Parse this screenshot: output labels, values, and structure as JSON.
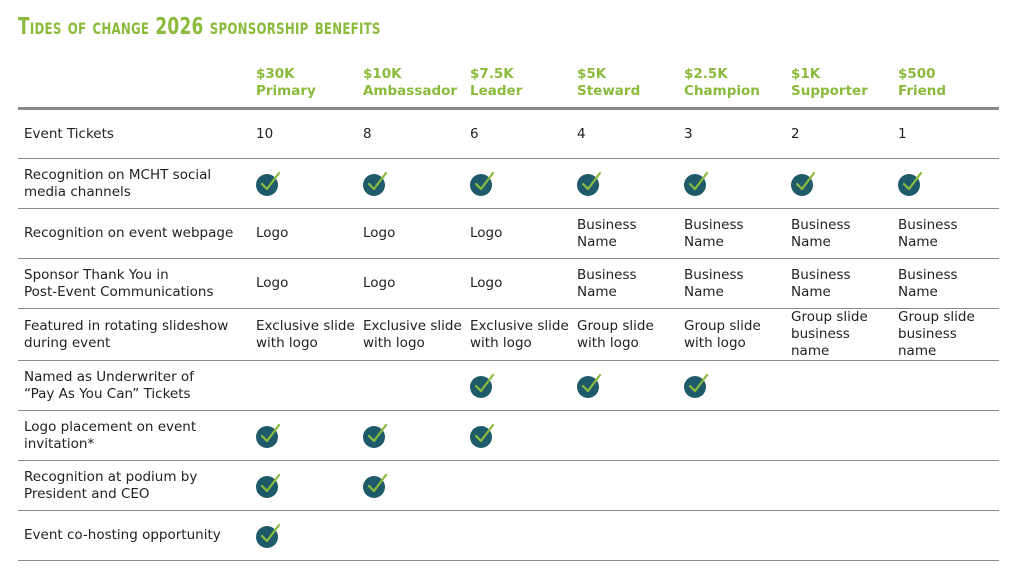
{
  "title": "Tides of Change 2026 sponsorship benefits",
  "tiers": [
    {
      "amount": "$30K",
      "name": "Primary"
    },
    {
      "amount": "$10K",
      "name": "Ambassador"
    },
    {
      "amount": "$7.5K",
      "name": "Leader"
    },
    {
      "amount": "$5K",
      "name": "Steward"
    },
    {
      "amount": "$2.5K",
      "name": "Champion"
    },
    {
      "amount": "$1K",
      "name": "Supporter"
    },
    {
      "amount": "$500",
      "name": "Friend"
    }
  ],
  "rows": [
    {
      "label": "Event Tickets",
      "cells": [
        {
          "type": "text",
          "lines": [
            "10"
          ]
        },
        {
          "type": "text",
          "lines": [
            "8"
          ]
        },
        {
          "type": "text",
          "lines": [
            "6"
          ]
        },
        {
          "type": "text",
          "lines": [
            "4"
          ]
        },
        {
          "type": "text",
          "lines": [
            "3"
          ]
        },
        {
          "type": "text",
          "lines": [
            "2"
          ]
        },
        {
          "type": "text",
          "lines": [
            "1"
          ]
        }
      ]
    },
    {
      "label": "Recognition on MCHT social media channels",
      "label_lines": [
        "Recognition on MCHT social",
        "media channels"
      ],
      "cells": [
        {
          "type": "check"
        },
        {
          "type": "check"
        },
        {
          "type": "check"
        },
        {
          "type": "check"
        },
        {
          "type": "check"
        },
        {
          "type": "check"
        },
        {
          "type": "check"
        }
      ]
    },
    {
      "label": "Recognition on event webpage",
      "cells": [
        {
          "type": "text",
          "lines": [
            "Logo"
          ]
        },
        {
          "type": "text",
          "lines": [
            "Logo"
          ]
        },
        {
          "type": "text",
          "lines": [
            "Logo"
          ]
        },
        {
          "type": "text",
          "lines": [
            "Business",
            "Name"
          ]
        },
        {
          "type": "text",
          "lines": [
            "Business",
            "Name"
          ]
        },
        {
          "type": "text",
          "lines": [
            "Business",
            "Name"
          ]
        },
        {
          "type": "text",
          "lines": [
            "Business",
            "Name"
          ]
        }
      ]
    },
    {
      "label": "Sponsor Thank You in Post-Event Communications",
      "label_lines": [
        "Sponsor Thank You in",
        "Post-Event Communications"
      ],
      "cells": [
        {
          "type": "text",
          "lines": [
            "Logo"
          ]
        },
        {
          "type": "text",
          "lines": [
            "Logo"
          ]
        },
        {
          "type": "text",
          "lines": [
            "Logo"
          ]
        },
        {
          "type": "text",
          "lines": [
            "Business",
            "Name"
          ]
        },
        {
          "type": "text",
          "lines": [
            "Business",
            "Name"
          ]
        },
        {
          "type": "text",
          "lines": [
            "Business",
            "Name"
          ]
        },
        {
          "type": "text",
          "lines": [
            "Business",
            "Name"
          ]
        }
      ]
    },
    {
      "label": "Featured in rotating slideshow during event",
      "label_lines": [
        "Featured in rotating slideshow",
        "during event"
      ],
      "cells": [
        {
          "type": "text",
          "lines": [
            "Exclusive slide",
            "with logo"
          ]
        },
        {
          "type": "text",
          "lines": [
            "Exclusive slide",
            "with logo"
          ]
        },
        {
          "type": "text",
          "lines": [
            "Exclusive slide",
            "with logo"
          ]
        },
        {
          "type": "text",
          "lines": [
            "Group slide",
            "with logo"
          ]
        },
        {
          "type": "text",
          "lines": [
            "Group slide",
            "with logo"
          ]
        },
        {
          "type": "text",
          "lines": [
            "Group slide",
            "business name"
          ]
        },
        {
          "type": "text",
          "lines": [
            "Group slide",
            "business name"
          ]
        }
      ]
    },
    {
      "label": "Named as Underwriter of “Pay As You Can” Tickets",
      "label_lines": [
        "Named as Underwriter of",
        "“Pay As You Can” Tickets"
      ],
      "cells": [
        {
          "type": "empty"
        },
        {
          "type": "empty"
        },
        {
          "type": "check"
        },
        {
          "type": "check"
        },
        {
          "type": "check"
        },
        {
          "type": "empty"
        },
        {
          "type": "empty"
        }
      ]
    },
    {
      "label": "Logo placement on event invitation*",
      "label_lines": [
        "Logo placement on event",
        "invitation*"
      ],
      "cells": [
        {
          "type": "check"
        },
        {
          "type": "check"
        },
        {
          "type": "check"
        },
        {
          "type": "empty"
        },
        {
          "type": "empty"
        },
        {
          "type": "empty"
        },
        {
          "type": "empty"
        }
      ]
    },
    {
      "label": "Recognition at podium by President and CEO",
      "label_lines": [
        "Recognition at podium by",
        "President and CEO"
      ],
      "cells": [
        {
          "type": "check"
        },
        {
          "type": "check"
        },
        {
          "type": "empty"
        },
        {
          "type": "empty"
        },
        {
          "type": "empty"
        },
        {
          "type": "empty"
        },
        {
          "type": "empty"
        }
      ]
    },
    {
      "label": "Event co-hosting opportunity",
      "cells": [
        {
          "type": "check"
        },
        {
          "type": "empty"
        },
        {
          "type": "empty"
        },
        {
          "type": "empty"
        },
        {
          "type": "empty"
        },
        {
          "type": "empty"
        },
        {
          "type": "empty"
        }
      ]
    }
  ],
  "icons": {
    "included": "check-circle-icon"
  },
  "colors": {
    "accent_green": "#8bbb3c",
    "check_fill": "#1f5a6b",
    "check_mark": "#8bbb3c",
    "rule": "#8a8a8a"
  }
}
